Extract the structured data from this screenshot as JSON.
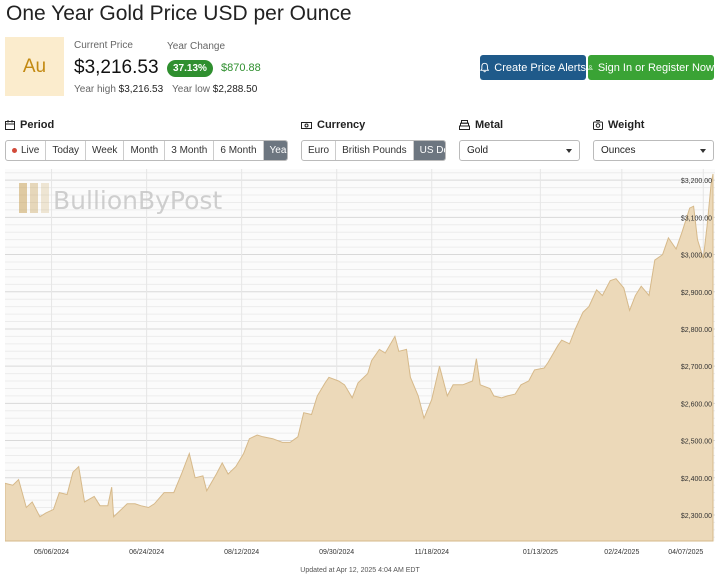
{
  "header": {
    "title": "One Year Gold Price USD per Ounce"
  },
  "metal_badge": {
    "symbol": "Au"
  },
  "price": {
    "current_label": "Current Price",
    "current_value": "$3,216.53",
    "change_label": "Year Change",
    "change_pct": "37.13%",
    "change_abs": "$870.88",
    "year_high_label": "Year high",
    "year_high_value": "$3,216.53",
    "year_low_label": "Year low",
    "year_low_value": "$2,288.50"
  },
  "actions": {
    "alerts_label": "Create Price Alerts",
    "signin_label": "Sign In or Register Now"
  },
  "controls": {
    "period_label": "Period",
    "period_options": [
      "Live",
      "Today",
      "Week",
      "Month",
      "3 Month",
      "6 Month",
      "Year"
    ],
    "period_more": "•••",
    "period_selected": "Year",
    "currency_label": "Currency",
    "currency_options": [
      "Euro",
      "British Pounds",
      "US Dollar"
    ],
    "currency_selected": "US Dollar",
    "metal_label": "Metal",
    "metal_value": "Gold",
    "weight_label": "Weight",
    "weight_value": "Ounces"
  },
  "colors": {
    "up_green": "#2f8f2f",
    "brand_blue": "#1f5a8a",
    "signin_green": "#3aa335",
    "area_fill": "#ecd9b9",
    "area_line": "#d6b98a"
  },
  "chart_data": {
    "type": "area",
    "watermark": "BullionByPost",
    "x_tick_labels": [
      "05/06/2024",
      "06/24/2024",
      "08/12/2024",
      "09/30/2024",
      "11/18/2024",
      "01/13/2025",
      "02/24/2025",
      "04/07/2025"
    ],
    "y_ticks": [
      2300,
      2400,
      2500,
      2600,
      2700,
      2800,
      2900,
      3000,
      3100,
      3200
    ],
    "y_tick_labels": [
      "$2,300.00",
      "$2,400.00",
      "$2,500.00",
      "$2,600.00",
      "$2,700.00",
      "$2,800.00",
      "$2,900.00",
      "$3,000.00",
      "$3,100.00",
      "$3,200.00"
    ],
    "ylim": [
      2230,
      3230
    ],
    "x_range": [
      "2024-04-12",
      "2025-04-12"
    ],
    "grid": true,
    "series": [
      {
        "points": [
          [
            "2024-04-12",
            2385
          ],
          [
            "2024-04-16",
            2380
          ],
          [
            "2024-04-19",
            2395
          ],
          [
            "2024-04-23",
            2320
          ],
          [
            "2024-04-26",
            2335
          ],
          [
            "2024-04-30",
            2295
          ],
          [
            "2024-05-03",
            2305
          ],
          [
            "2024-05-07",
            2315
          ],
          [
            "2024-05-10",
            2360
          ],
          [
            "2024-05-14",
            2355
          ],
          [
            "2024-05-17",
            2415
          ],
          [
            "2024-05-20",
            2430
          ],
          [
            "2024-05-23",
            2335
          ],
          [
            "2024-05-28",
            2350
          ],
          [
            "2024-05-31",
            2325
          ],
          [
            "2024-06-04",
            2325
          ],
          [
            "2024-06-06",
            2375
          ],
          [
            "2024-06-07",
            2295
          ],
          [
            "2024-06-11",
            2315
          ],
          [
            "2024-06-14",
            2330
          ],
          [
            "2024-06-18",
            2330
          ],
          [
            "2024-06-21",
            2325
          ],
          [
            "2024-06-25",
            2320
          ],
          [
            "2024-06-28",
            2330
          ],
          [
            "2024-07-03",
            2360
          ],
          [
            "2024-07-08",
            2360
          ],
          [
            "2024-07-12",
            2410
          ],
          [
            "2024-07-16",
            2465
          ],
          [
            "2024-07-19",
            2400
          ],
          [
            "2024-07-23",
            2405
          ],
          [
            "2024-07-25",
            2365
          ],
          [
            "2024-07-30",
            2410
          ],
          [
            "2024-08-02",
            2440
          ],
          [
            "2024-08-05",
            2410
          ],
          [
            "2024-08-09",
            2430
          ],
          [
            "2024-08-13",
            2465
          ],
          [
            "2024-08-16",
            2505
          ],
          [
            "2024-08-20",
            2515
          ],
          [
            "2024-08-23",
            2510
          ],
          [
            "2024-08-28",
            2505
          ],
          [
            "2024-09-02",
            2495
          ],
          [
            "2024-09-06",
            2495
          ],
          [
            "2024-09-10",
            2510
          ],
          [
            "2024-09-13",
            2575
          ],
          [
            "2024-09-17",
            2570
          ],
          [
            "2024-09-20",
            2620
          ],
          [
            "2024-09-24",
            2655
          ],
          [
            "2024-09-26",
            2670
          ],
          [
            "2024-10-01",
            2660
          ],
          [
            "2024-10-04",
            2650
          ],
          [
            "2024-10-08",
            2615
          ],
          [
            "2024-10-11",
            2655
          ],
          [
            "2024-10-16",
            2680
          ],
          [
            "2024-10-18",
            2715
          ],
          [
            "2024-10-22",
            2745
          ],
          [
            "2024-10-25",
            2735
          ],
          [
            "2024-10-30",
            2780
          ],
          [
            "2024-11-01",
            2740
          ],
          [
            "2024-11-05",
            2745
          ],
          [
            "2024-11-07",
            2670
          ],
          [
            "2024-11-11",
            2620
          ],
          [
            "2024-11-14",
            2560
          ],
          [
            "2024-11-18",
            2610
          ],
          [
            "2024-11-22",
            2700
          ],
          [
            "2024-11-26",
            2620
          ],
          [
            "2024-11-29",
            2650
          ],
          [
            "2024-12-04",
            2650
          ],
          [
            "2024-12-09",
            2660
          ],
          [
            "2024-12-11",
            2720
          ],
          [
            "2024-12-13",
            2650
          ],
          [
            "2024-12-18",
            2640
          ],
          [
            "2024-12-20",
            2620
          ],
          [
            "2024-12-24",
            2615
          ],
          [
            "2024-12-27",
            2620
          ],
          [
            "2024-12-31",
            2625
          ],
          [
            "2025-01-03",
            2650
          ],
          [
            "2025-01-07",
            2660
          ],
          [
            "2025-01-10",
            2690
          ],
          [
            "2025-01-15",
            2695
          ],
          [
            "2025-01-17",
            2710
          ],
          [
            "2025-01-22",
            2755
          ],
          [
            "2025-01-24",
            2770
          ],
          [
            "2025-01-28",
            2760
          ],
          [
            "2025-01-31",
            2800
          ],
          [
            "2025-02-04",
            2845
          ],
          [
            "2025-02-07",
            2860
          ],
          [
            "2025-02-11",
            2905
          ],
          [
            "2025-02-14",
            2890
          ],
          [
            "2025-02-18",
            2930
          ],
          [
            "2025-02-21",
            2935
          ],
          [
            "2025-02-25",
            2910
          ],
          [
            "2025-02-28",
            2850
          ],
          [
            "2025-03-03",
            2890
          ],
          [
            "2025-03-06",
            2915
          ],
          [
            "2025-03-10",
            2890
          ],
          [
            "2025-03-13",
            2985
          ],
          [
            "2025-03-17",
            3000
          ],
          [
            "2025-03-20",
            3045
          ],
          [
            "2025-03-24",
            3015
          ],
          [
            "2025-03-27",
            3060
          ],
          [
            "2025-03-31",
            3125
          ],
          [
            "2025-04-02",
            3130
          ],
          [
            "2025-04-04",
            3040
          ],
          [
            "2025-04-07",
            2990
          ],
          [
            "2025-04-09",
            3080
          ],
          [
            "2025-04-11",
            3190
          ],
          [
            "2025-04-12",
            3216.53
          ]
        ]
      }
    ]
  },
  "footer": {
    "updated": "Updated at Apr 12, 2025 4:04 AM EDT"
  }
}
